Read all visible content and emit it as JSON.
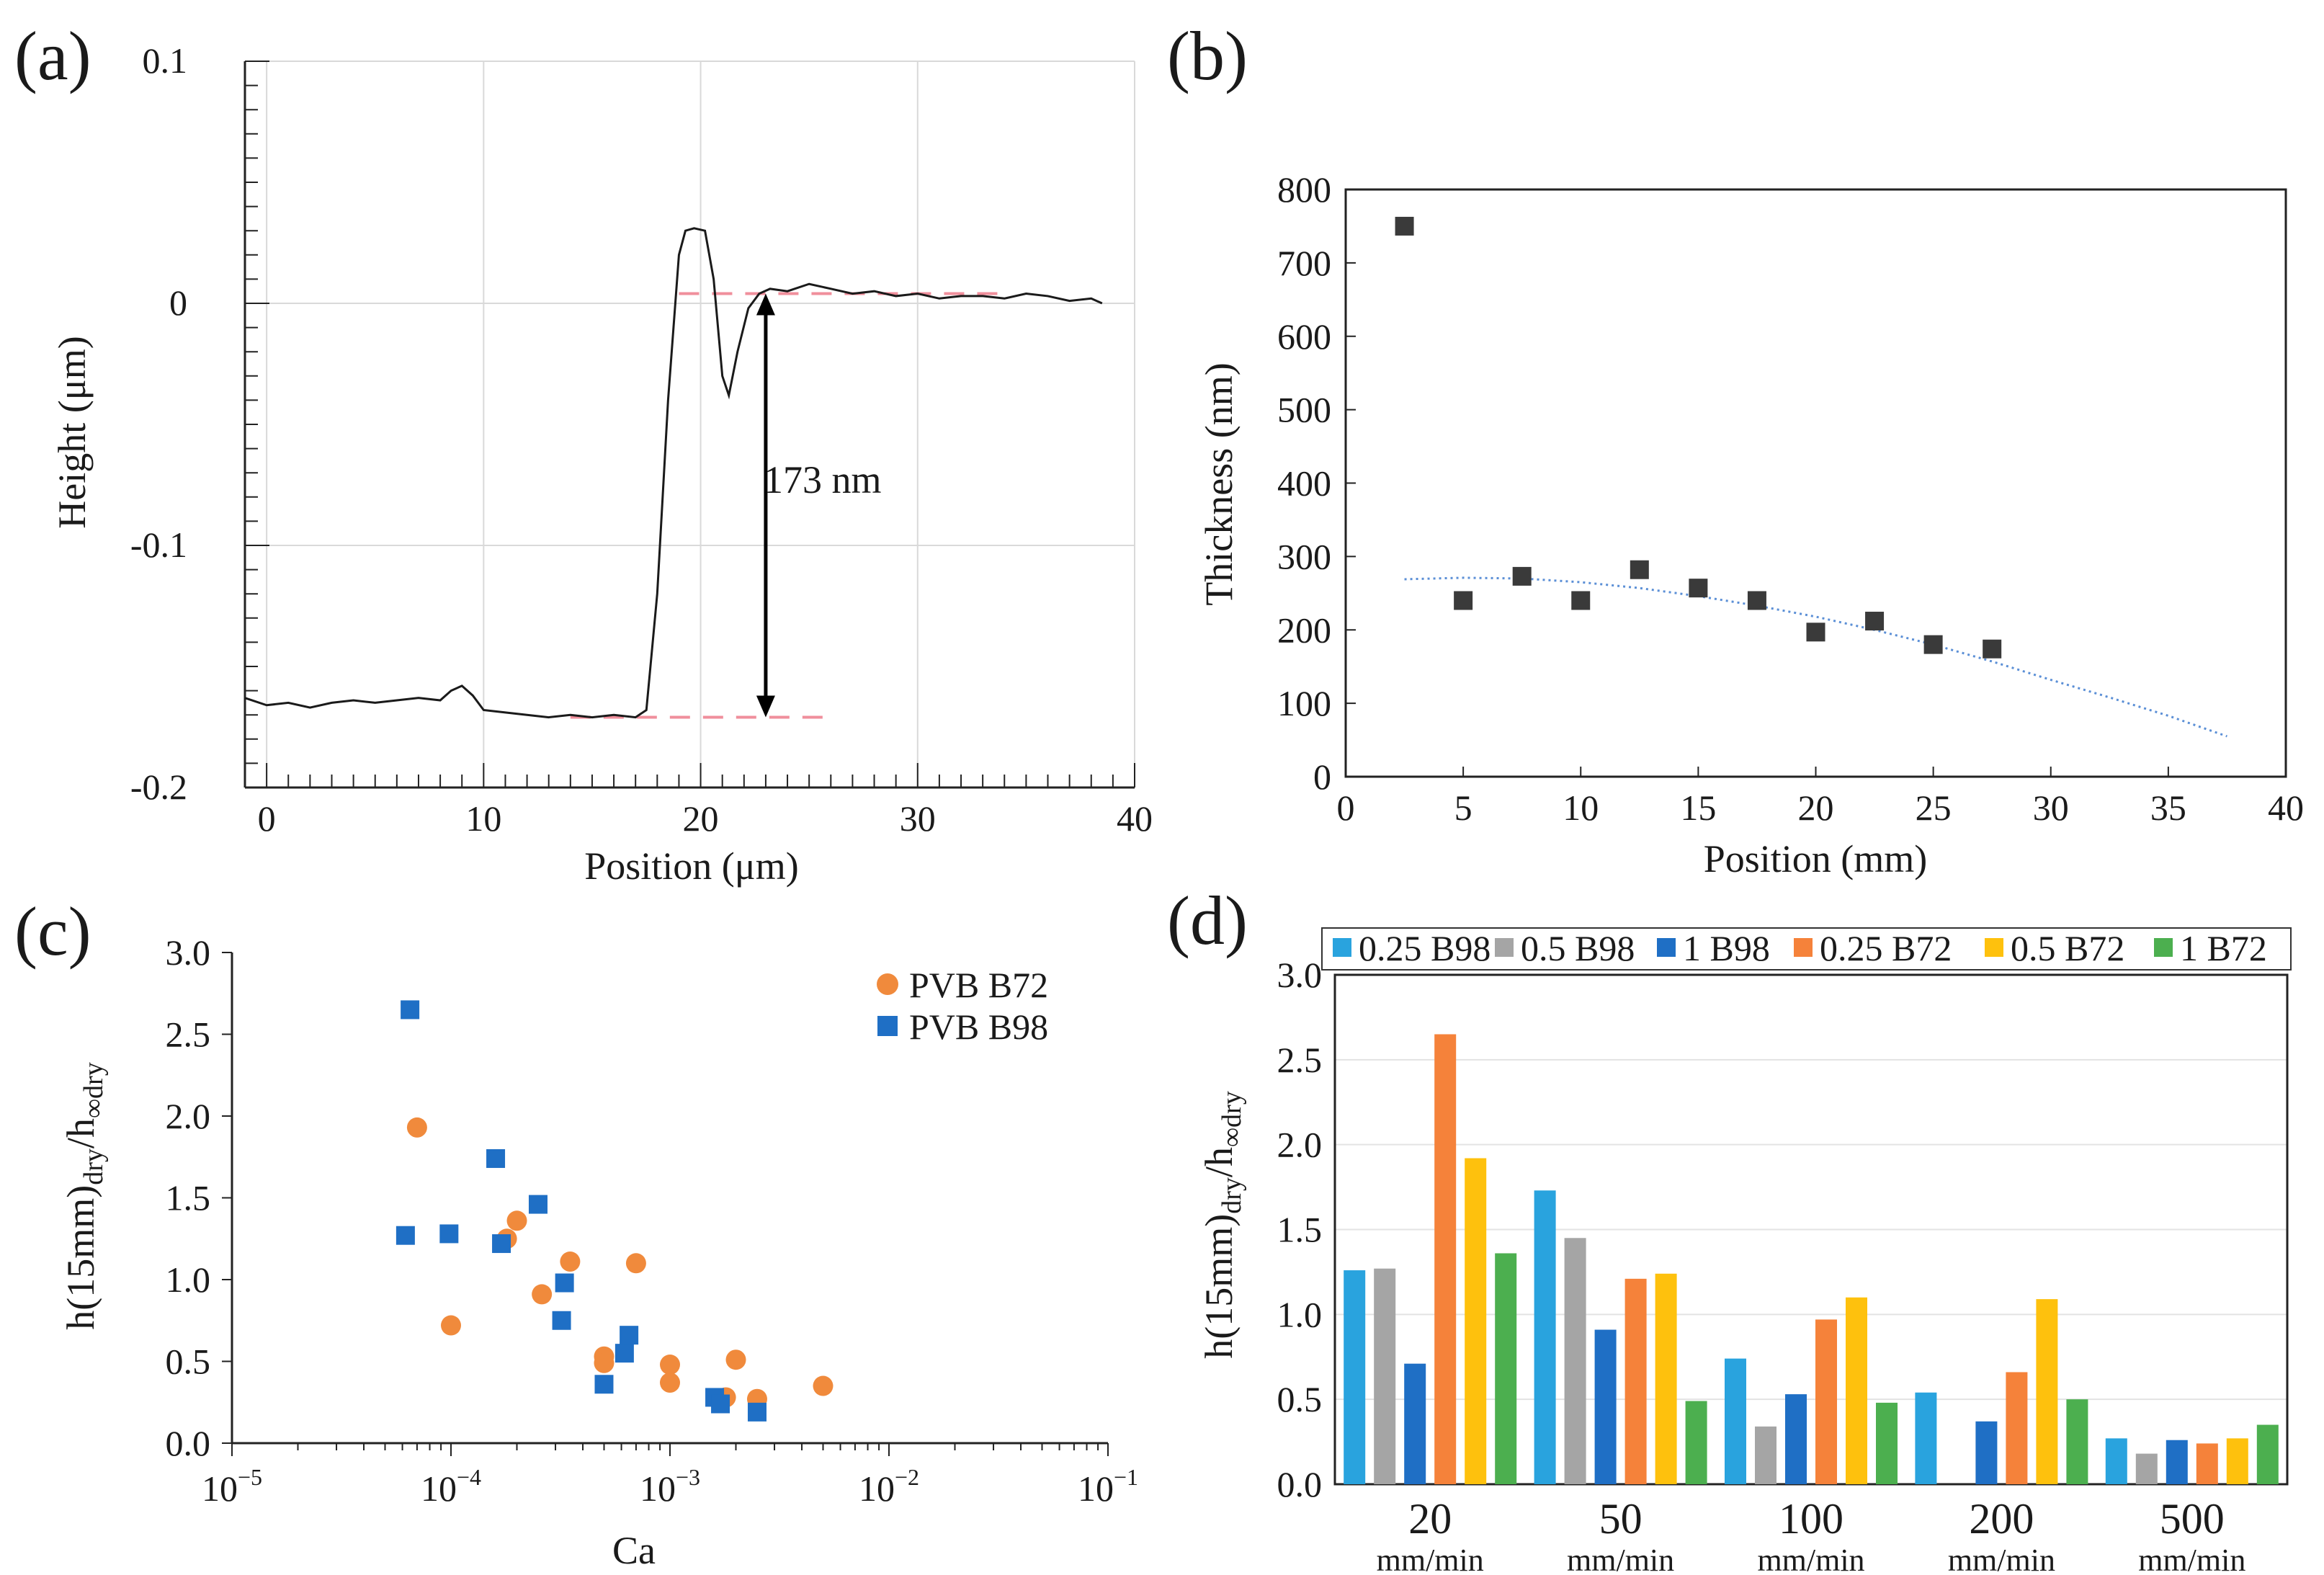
{
  "panels": {
    "a": {
      "label": "(a)"
    },
    "b": {
      "label": "(b)"
    },
    "c": {
      "label": "(c)"
    },
    "d": {
      "label": "(d)"
    }
  },
  "chart_data": [
    {
      "id": "a",
      "type": "line",
      "xlabel": "Position (μm)",
      "ylabel": "Height (μm)",
      "xlim": [
        -1,
        40
      ],
      "ylim": [
        -0.2,
        0.1
      ],
      "xticks": [
        0,
        10,
        20,
        30,
        40
      ],
      "yticks": [
        0.1,
        0,
        -0.1,
        -0.2
      ],
      "ytick_labels": [
        "0.1",
        "0",
        "-0.1",
        "-0.2"
      ],
      "grid": true,
      "annotation": "173 nm",
      "reference_lines": [
        {
          "name": "top-reference",
          "x": [
            19,
            34
          ],
          "y": 0.004
        },
        {
          "name": "bottom-reference",
          "x": [
            14,
            26
          ],
          "y": -0.171
        }
      ],
      "arrow": {
        "x": 23,
        "y_top": 0.004,
        "y_bottom": -0.171
      },
      "series": [
        {
          "name": "profile",
          "x": [
            -1,
            0,
            1,
            2,
            3,
            4,
            5,
            6,
            7,
            8,
            8.5,
            9,
            9.5,
            10,
            11,
            12,
            13,
            14,
            15,
            16,
            17,
            17.5,
            18,
            18.5,
            19,
            19.3,
            19.7,
            20.2,
            20.6,
            21,
            21.3,
            21.7,
            22.2,
            22.7,
            23.2,
            24,
            25,
            26,
            27,
            28,
            29,
            30,
            31,
            32,
            33,
            34,
            35,
            36,
            37,
            38,
            38.5
          ],
          "y": [
            -0.163,
            -0.166,
            -0.165,
            -0.167,
            -0.165,
            -0.164,
            -0.165,
            -0.164,
            -0.163,
            -0.164,
            -0.16,
            -0.158,
            -0.162,
            -0.168,
            -0.169,
            -0.17,
            -0.171,
            -0.17,
            -0.171,
            -0.17,
            -0.171,
            -0.168,
            -0.12,
            -0.04,
            0.02,
            0.03,
            0.031,
            0.03,
            0.01,
            -0.03,
            -0.038,
            -0.02,
            -0.002,
            0.004,
            0.006,
            0.005,
            0.008,
            0.006,
            0.004,
            0.005,
            0.003,
            0.004,
            0.002,
            0.003,
            0.003,
            0.002,
            0.004,
            0.003,
            0.001,
            0.002,
            0.0
          ]
        }
      ]
    },
    {
      "id": "b",
      "type": "scatter",
      "xlabel": "Position (mm)",
      "ylabel": "Thickness (nm)",
      "xlim": [
        0,
        40
      ],
      "ylim": [
        0,
        800
      ],
      "xticks": [
        0,
        5,
        10,
        15,
        20,
        25,
        30,
        35,
        40
      ],
      "yticks": [
        0,
        100,
        200,
        300,
        400,
        500,
        600,
        700,
        800
      ],
      "series": [
        {
          "name": "measured",
          "x": [
            2.5,
            5,
            7.5,
            10,
            12.5,
            15,
            17.5,
            20,
            22.5,
            25,
            27.5
          ],
          "y": [
            750,
            240,
            273,
            240,
            282,
            257,
            240,
            197,
            212,
            180,
            174
          ]
        },
        {
          "name": "trendline",
          "x": [
            2.5,
            5,
            7.5,
            10,
            12.5,
            15,
            17.5,
            20,
            22.5,
            25,
            27.5,
            30,
            32.5,
            35,
            37.5
          ],
          "y": [
            269,
            271,
            270,
            265,
            257,
            246,
            233,
            218,
            200,
            180,
            157,
            132,
            108,
            83,
            55
          ]
        }
      ]
    },
    {
      "id": "c",
      "type": "scatter",
      "xscale": "log",
      "xlabel": "Ca",
      "ylabel": "h(15mm)dry/h∞dry",
      "ylabel_parts": {
        "main": "h(15mm)",
        "sub1": "dry",
        "mid": "/h",
        "sub2": "∞dry"
      },
      "xlim": [
        1e-05,
        0.1
      ],
      "ylim": [
        0,
        3
      ],
      "xtick_base": "10",
      "xtick_exponents": [
        "−5",
        "−4",
        "−3",
        "−2",
        "−1"
      ],
      "yticks": [
        0,
        0.5,
        1,
        1.5,
        2,
        2.5,
        3
      ],
      "ytick_labels": [
        "0.0",
        "0.5",
        "1.0",
        "1.5",
        "2.0",
        "2.5",
        "3.0"
      ],
      "legend_position": "top-right",
      "series": [
        {
          "name": "PVB B72",
          "color": "#f08a3c",
          "marker": "circle",
          "x": [
            7e-05,
            0.0001,
            0.00018,
            0.0002,
            0.00026,
            0.00035,
            0.0005,
            0.0005,
            0.0007,
            0.001,
            0.001,
            0.0018,
            0.002,
            0.0025,
            0.005
          ],
          "y": [
            1.93,
            0.72,
            1.25,
            1.36,
            0.91,
            1.11,
            0.53,
            0.49,
            1.1,
            0.48,
            0.37,
            0.28,
            0.51,
            0.27,
            0.35
          ]
        },
        {
          "name": "PVB B98",
          "color": "#1f6fc5",
          "marker": "square",
          "x": [
            6.5e-05,
            6.2e-05,
            9.8e-05,
            0.00016,
            0.00017,
            0.00025,
            0.00033,
            0.00032,
            0.0005,
            0.00062,
            0.00065,
            0.0016,
            0.0017,
            0.0025
          ],
          "y": [
            2.65,
            1.27,
            1.28,
            1.74,
            1.22,
            1.46,
            0.98,
            0.75,
            0.36,
            0.55,
            0.66,
            0.28,
            0.24,
            0.19
          ]
        }
      ]
    },
    {
      "id": "d",
      "type": "bar",
      "ylabel": "h(15mm)dry/h∞dry",
      "ylabel_parts": {
        "main": "h(15mm)",
        "sub1": "dry",
        "mid": "/h",
        "sub2": "∞dry"
      },
      "ylim": [
        0,
        3
      ],
      "yticks": [
        0,
        0.5,
        1,
        1.5,
        2,
        2.5,
        3
      ],
      "ytick_labels": [
        "0.0",
        "0.5",
        "1.0",
        "1.5",
        "2.0",
        "2.5",
        "3.0"
      ],
      "legend_position": "top",
      "categories": [
        "20",
        "50",
        "100",
        "200",
        "500"
      ],
      "category_unit": "mm/min",
      "series": [
        {
          "name": "0.25 B98",
          "color": "#29a3de",
          "values": [
            1.26,
            1.73,
            0.74,
            0.54,
            0.27
          ]
        },
        {
          "name": "0.5 B98",
          "color": "#a5a5a5",
          "values": [
            1.27,
            1.45,
            0.34,
            0,
            0.18
          ]
        },
        {
          "name": "1 B98",
          "color": "#1f6fc5",
          "values": [
            0.71,
            0.91,
            0.53,
            0.37,
            0.26
          ]
        },
        {
          "name": "0.25 B72",
          "color": "#f5823a",
          "values": [
            2.65,
            1.21,
            0.97,
            0.66,
            0.24
          ]
        },
        {
          "name": "0.5 B72",
          "color": "#fec10d",
          "values": [
            1.92,
            1.24,
            1.1,
            1.09,
            0.27
          ]
        },
        {
          "name": "1 B72",
          "color": "#4caf4f",
          "values": [
            1.36,
            0.49,
            0.48,
            0.5,
            0.35
          ]
        }
      ]
    }
  ]
}
